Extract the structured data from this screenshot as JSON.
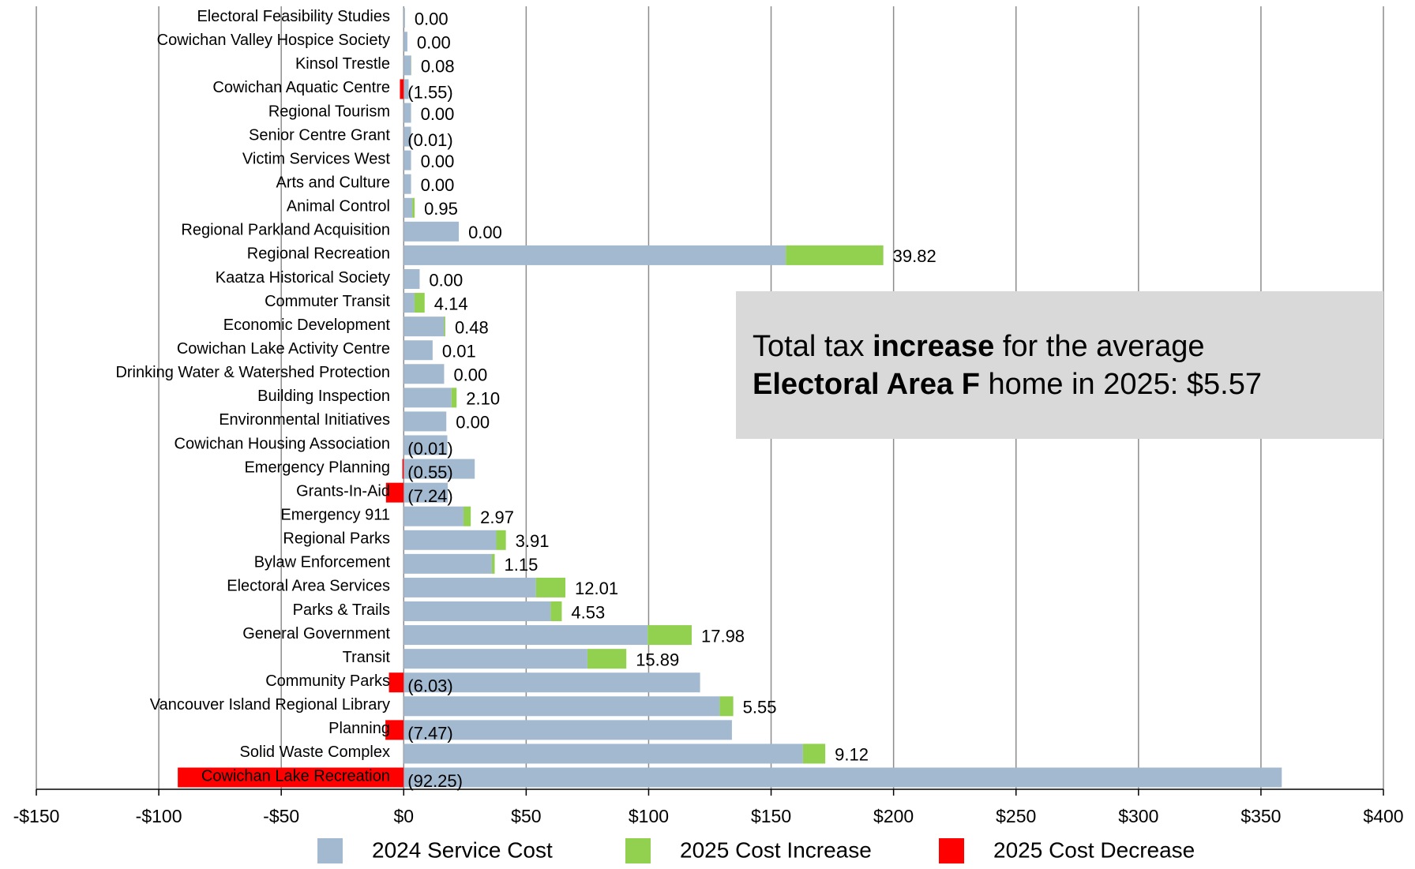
{
  "chart_data": {
    "type": "bar",
    "orientation": "horizontal",
    "stacked": true,
    "categories": [
      "Electoral Feasibility Studies",
      "Cowichan Valley Hospice Society",
      "Kinsol Trestle",
      "Cowichan Aquatic Centre",
      "Regional Tourism",
      "Senior Centre Grant",
      "Victim Services West",
      "Arts and Culture",
      "Animal Control",
      "Regional Parkland Acquisition",
      "Regional Recreation",
      "Kaatza Historical Society",
      "Commuter Transit",
      "Economic Development",
      "Cowichan Lake Activity Centre",
      "Drinking Water & Watershed Protection",
      "Building Inspection",
      "Environmental Initiatives",
      "Cowichan Housing Association",
      "Emergency Planning",
      "Grants-In-Aid",
      "Emergency 911",
      "Regional Parks",
      "Bylaw Enforcement",
      "Electoral Area Services",
      "Parks & Trails",
      "General Government",
      "Transit",
      "Community Parks",
      "Vancouver Island Regional Library",
      "Planning",
      "Solid Waste Complex",
      "Cowichan Lake Recreation"
    ],
    "series": [
      {
        "name": "2024 Service Cost",
        "color": "#a2b9d0",
        "values": [
          0.5,
          1.5,
          3,
          2,
          3,
          3,
          3,
          3,
          3.5,
          22.5,
          156,
          6.5,
          4.4,
          16.5,
          11.8,
          16.5,
          19.5,
          17.4,
          17.8,
          29,
          18,
          24.4,
          37.8,
          36,
          54,
          60,
          99.6,
          75,
          121,
          129,
          134,
          163,
          358.5
        ]
      },
      {
        "name": "2025 Cost Increase",
        "color": "#92d050",
        "values": [
          0,
          0,
          0.08,
          null,
          0,
          null,
          0,
          0,
          0.95,
          0,
          39.82,
          0,
          4.14,
          0.48,
          0.01,
          0,
          2.1,
          0,
          null,
          null,
          null,
          2.97,
          3.91,
          1.15,
          12.01,
          4.53,
          17.98,
          15.89,
          null,
          5.55,
          null,
          9.12,
          null
        ],
        "value_labels": [
          "0.00",
          "0.00",
          "0.08",
          null,
          "0.00",
          null,
          "0.00",
          "0.00",
          "0.95",
          "0.00",
          "39.82",
          "0.00",
          "4.14",
          "0.48",
          "0.01",
          "0.00",
          "2.10",
          "0.00",
          null,
          null,
          null,
          "2.97",
          "3.91",
          "1.15",
          "12.01",
          "4.53",
          "17.98",
          "15.89",
          null,
          "5.55",
          null,
          "9.12",
          null
        ]
      },
      {
        "name": "2025 Cost Decrease",
        "color": "#ff0000",
        "values": [
          null,
          null,
          null,
          -1.55,
          null,
          -0.01,
          null,
          null,
          null,
          null,
          null,
          null,
          null,
          null,
          null,
          null,
          null,
          null,
          -0.01,
          -0.55,
          -7.24,
          null,
          null,
          null,
          null,
          null,
          null,
          null,
          -6.03,
          null,
          -7.47,
          null,
          -92.25
        ],
        "value_labels": [
          null,
          null,
          null,
          "(1.55)",
          null,
          "(0.01)",
          null,
          null,
          null,
          null,
          null,
          null,
          null,
          null,
          null,
          null,
          null,
          null,
          "(0.01)",
          "(0.55)",
          "(7.24)",
          null,
          null,
          null,
          null,
          null,
          null,
          null,
          "(6.03)",
          null,
          "(7.47)",
          null,
          "(92.25)"
        ]
      }
    ],
    "xlim": [
      -150,
      400
    ],
    "xticks": [
      {
        "value": -150,
        "label": "-$150"
      },
      {
        "value": -100,
        "label": "-$100"
      },
      {
        "value": -50,
        "label": "-$50"
      },
      {
        "value": 0,
        "label": "$0"
      },
      {
        "value": 50,
        "label": "$50"
      },
      {
        "value": 100,
        "label": "$100"
      },
      {
        "value": 150,
        "label": "$150"
      },
      {
        "value": 200,
        "label": "$200"
      },
      {
        "value": 250,
        "label": "$250"
      },
      {
        "value": 300,
        "label": "$300"
      },
      {
        "value": 350,
        "label": "$350"
      },
      {
        "value": 400,
        "label": "$400"
      }
    ],
    "grid": true,
    "legend": "bottom",
    "annotation": {
      "lines": [
        [
          {
            "text": "Total tax "
          },
          {
            "text": "increase",
            "bold": true
          },
          {
            "text": " for the average"
          }
        ],
        [
          {
            "text": "Electoral Area F",
            "bold": true
          },
          {
            "text": " home in 2025: $5.57"
          }
        ]
      ]
    }
  }
}
